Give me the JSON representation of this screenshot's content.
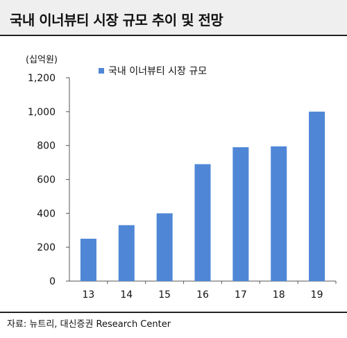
{
  "header": {
    "title": "국내 이너뷰티 시장 규모 추이 및 전망"
  },
  "footer": {
    "source": "자료: 뉴트리, 대신증권 Research Center"
  },
  "chart_data": {
    "type": "bar",
    "unit_label": "(십억원)",
    "categories": [
      "13",
      "14",
      "15",
      "16",
      "17",
      "18",
      "19"
    ],
    "series": [
      {
        "name": "국내 이너뷰티 시장 규모",
        "values": [
          250,
          330,
          400,
          690,
          790,
          795,
          1000
        ]
      }
    ],
    "ylim": [
      0,
      1200
    ],
    "yticks": [
      0,
      200,
      400,
      600,
      800,
      1000,
      1200
    ],
    "ytick_labels": [
      "0",
      "200",
      "400",
      "600",
      "800",
      "1,000",
      "1,200"
    ],
    "legend_position": "top-left",
    "grid": false,
    "bar_color": "#4f87d6"
  }
}
